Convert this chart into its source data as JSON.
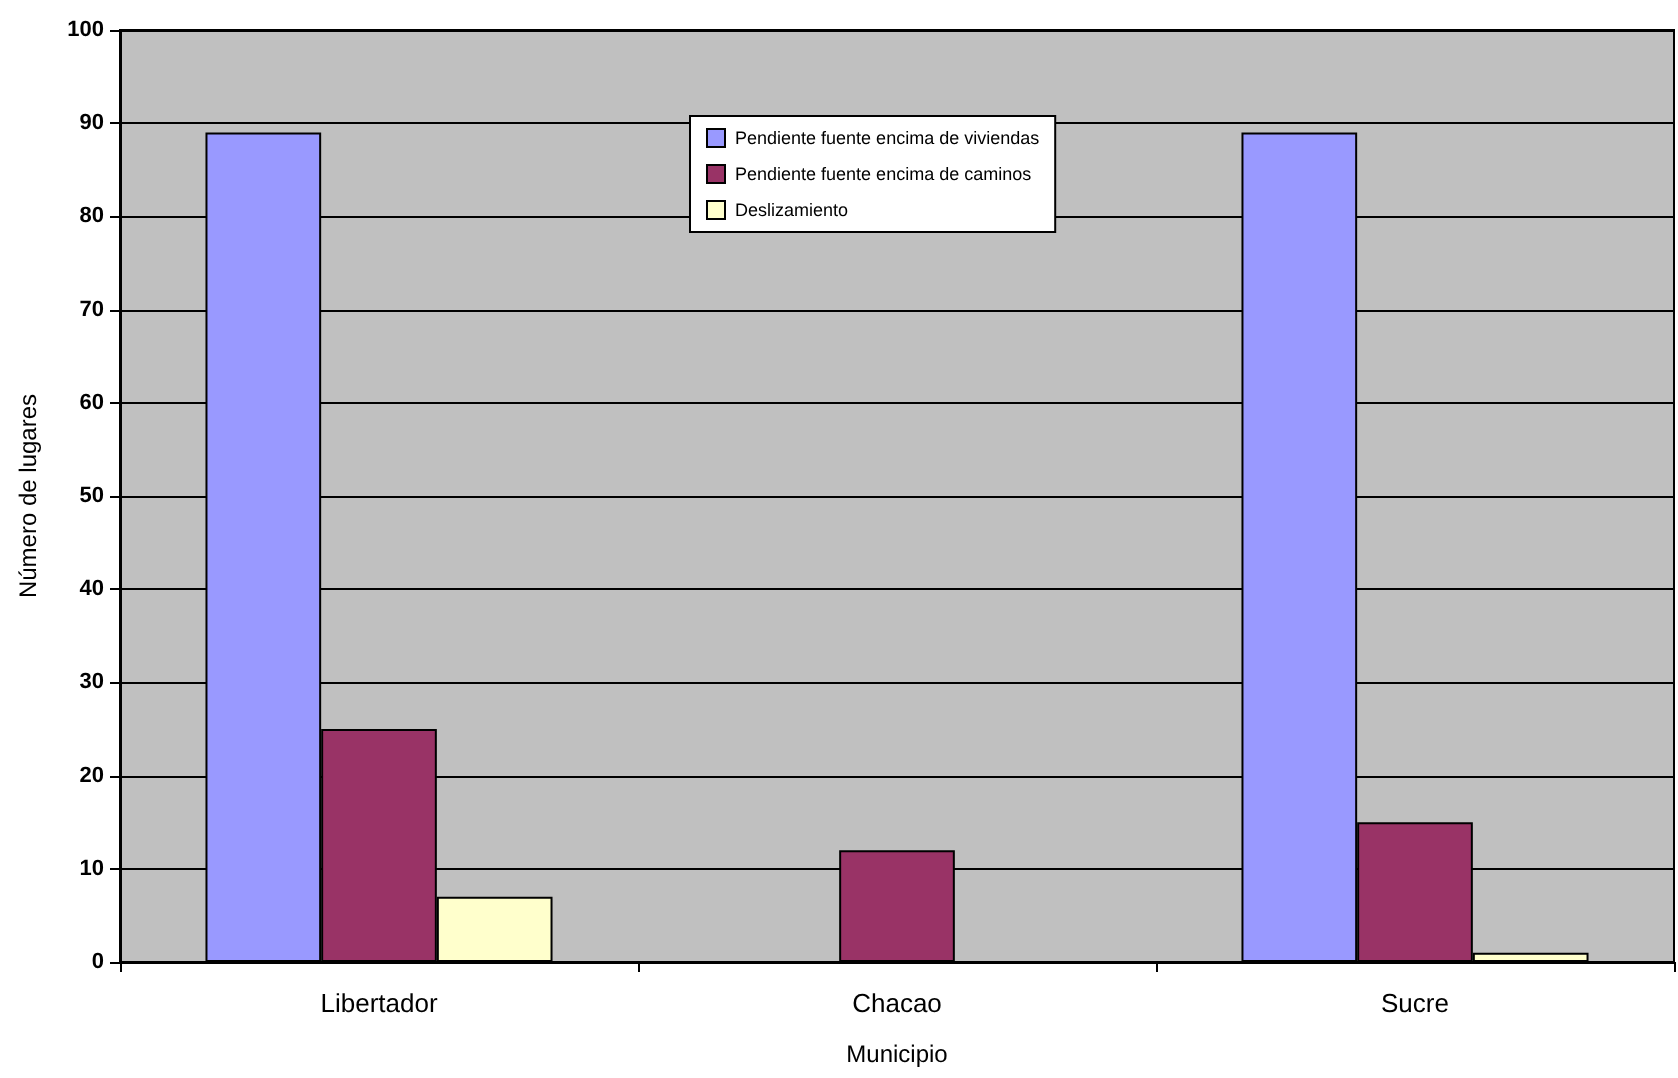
{
  "chart_data": {
    "type": "bar",
    "xlabel": "Municipio",
    "ylabel": "Número de lugares",
    "categories": [
      "Libertador",
      "Chacao",
      "Sucre"
    ],
    "series": [
      {
        "name": "Pendiente fuente encima de viviendas",
        "color": "#9999ff",
        "values": [
          89,
          null,
          89
        ]
      },
      {
        "name": "Pendiente fuente encima de caminos",
        "color": "#993366",
        "values": [
          25,
          12,
          15
        ]
      },
      {
        "name": "Deslizamiento",
        "color": "#ffffcc",
        "values": [
          7,
          null,
          1
        ]
      }
    ],
    "ylim": [
      0,
      100
    ],
    "yticks": [
      0,
      10,
      20,
      30,
      40,
      50,
      60,
      70,
      80,
      90,
      100
    ],
    "grid": "y",
    "legend": "top"
  }
}
